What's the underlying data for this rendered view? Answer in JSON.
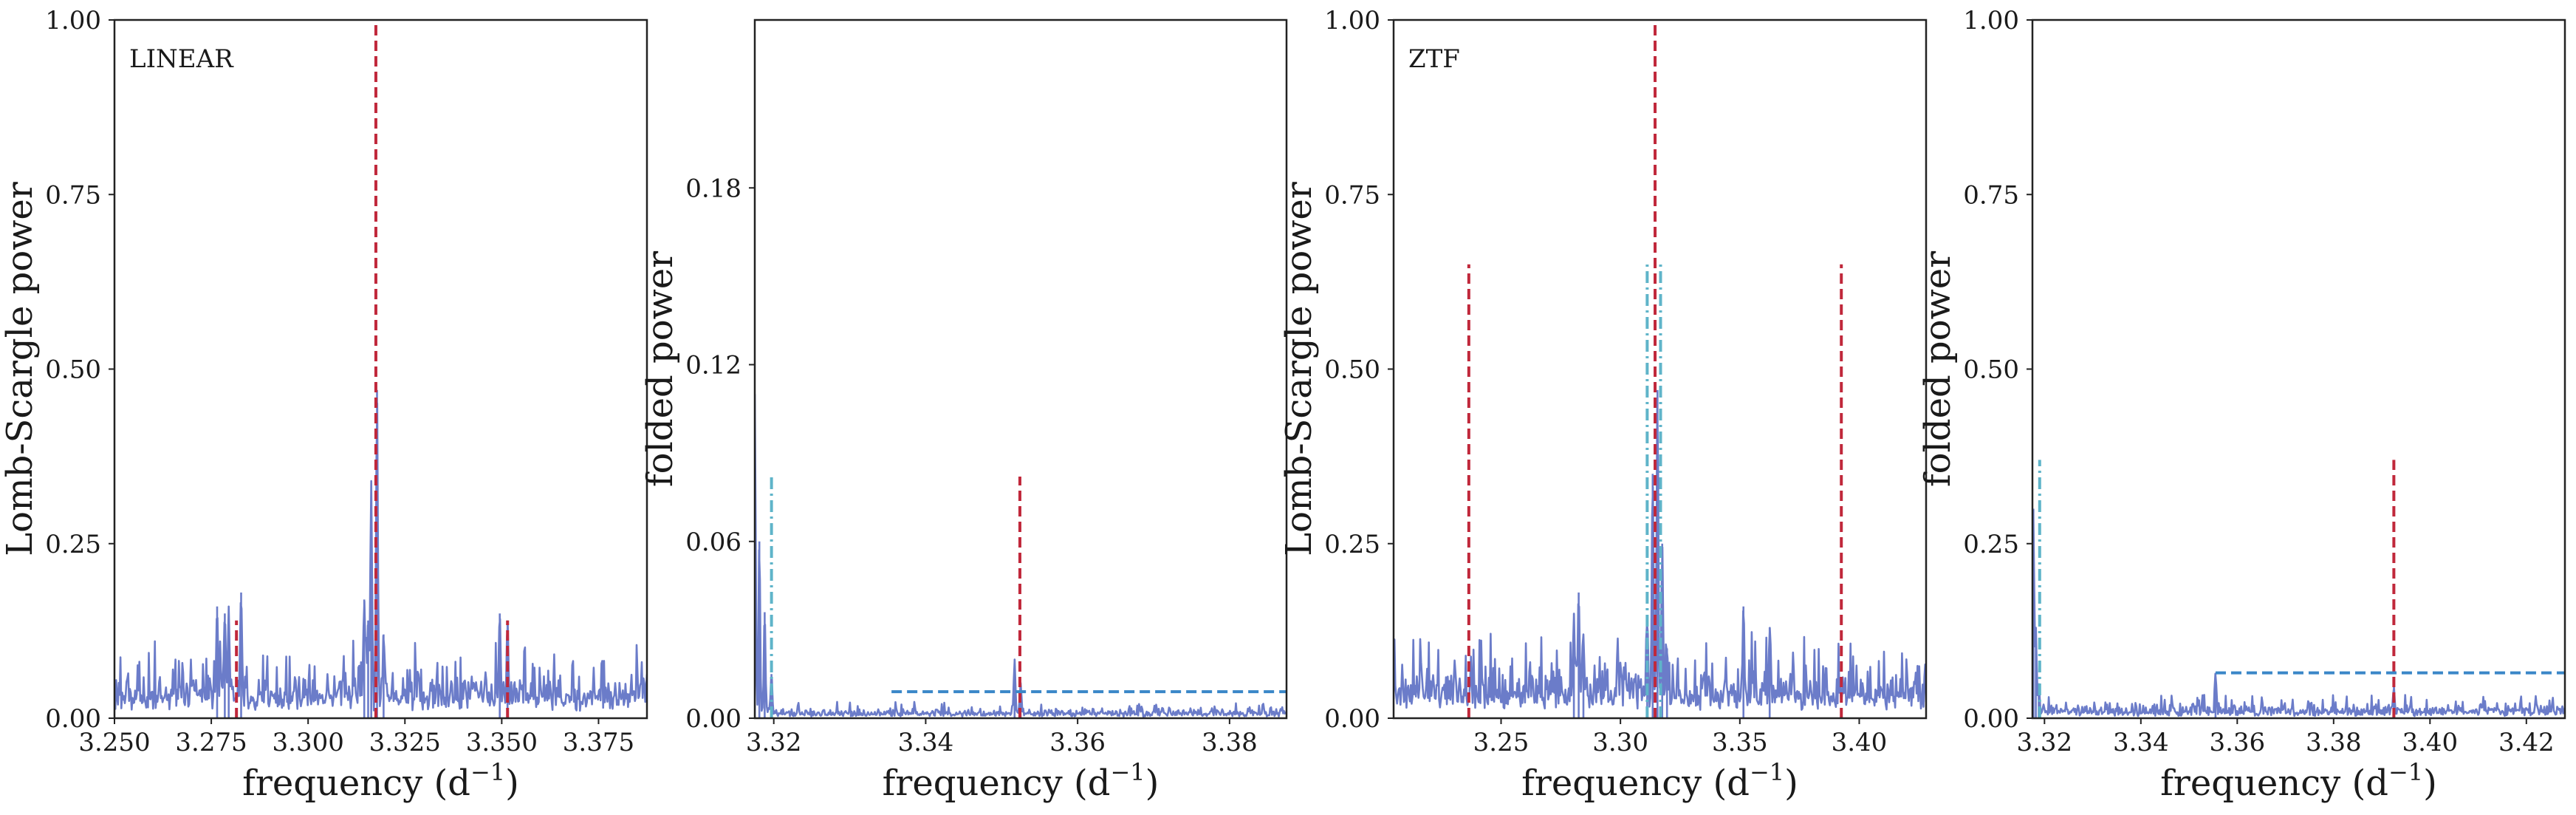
{
  "colors": {
    "power_line": "#6b7cc9",
    "red_dashed": "#c0283b",
    "teal_dashdot": "#5fb4c9",
    "blue_dashed": "#3a87c8"
  },
  "chart_data": [
    {
      "type": "line",
      "panel_label": "LINEAR",
      "xlabel": "frequency (d",
      "xlabel_sup": "−1",
      "xlabel_tail": ")",
      "ylabel": "Lomb-Scargle power",
      "xlim": [
        3.25,
        3.3875
      ],
      "ylim": [
        0,
        1.0
      ],
      "x_ticks": [
        3.25,
        3.275,
        3.3,
        3.325,
        3.35,
        3.375
      ],
      "x_tick_labels": [
        "3.250",
        "3.275",
        "3.300",
        "3.325",
        "3.350",
        "3.375"
      ],
      "y_ticks": [
        0,
        0.25,
        0.5,
        0.75,
        1.0
      ],
      "y_tick_labels": [
        "0.00",
        "0.25",
        "0.50",
        "0.75",
        "1.00"
      ],
      "series": [
        {
          "noise_level": 0.04,
          "peaks": [
            {
              "x": 3.2765,
              "y": 0.16
            },
            {
              "x": 3.2785,
              "y": 0.15
            },
            {
              "x": 3.2795,
              "y": 0.16
            },
            {
              "x": 3.2827,
              "y": 0.18
            },
            {
              "x": 3.3145,
              "y": 0.17
            },
            {
              "x": 3.3155,
              "y": 0.14
            },
            {
              "x": 3.3163,
              "y": 0.34
            },
            {
              "x": 3.3178,
              "y": 0.47
            },
            {
              "x": 3.3195,
              "y": 0.12
            },
            {
              "x": 3.3495,
              "y": 0.15
            },
            {
              "x": 3.3515,
              "y": 0.14
            }
          ]
        }
      ],
      "vlines": [
        {
          "x": 3.3175,
          "y0": 0,
          "y1": 1.0,
          "style": "dashed",
          "color": "#c0283b"
        },
        {
          "x": 3.2815,
          "y0": 0,
          "y1": 0.14,
          "style": "dashed",
          "color": "#c0283b"
        },
        {
          "x": 3.3515,
          "y0": 0,
          "y1": 0.14,
          "style": "dashed",
          "color": "#c0283b"
        }
      ],
      "hlines": []
    },
    {
      "type": "line",
      "panel_label": "",
      "xlabel": "frequency (d",
      "xlabel_sup": "−1",
      "xlabel_tail": ")",
      "ylabel": "folded power",
      "xlim": [
        3.3175,
        3.3875
      ],
      "ylim": [
        0,
        0.237
      ],
      "x_ticks": [
        3.32,
        3.34,
        3.36,
        3.38
      ],
      "x_tick_labels": [
        "3.32",
        "3.34",
        "3.36",
        "3.38"
      ],
      "y_ticks": [
        0,
        0.06,
        0.12,
        0.18
      ],
      "y_tick_labels": [
        "0.00",
        "0.06",
        "0.12",
        "0.18"
      ],
      "series": [
        {
          "noise_level": 0.002,
          "peaks": [
            {
              "x": 3.3175,
              "y": 0.11
            },
            {
              "x": 3.3181,
              "y": 0.06
            },
            {
              "x": 3.3188,
              "y": 0.036
            },
            {
              "x": 3.3197,
              "y": 0.015
            },
            {
              "x": 3.3517,
              "y": 0.02
            },
            {
              "x": 3.3525,
              "y": 0.012
            }
          ]
        }
      ],
      "vlines": [
        {
          "x": 3.3197,
          "y0": 0,
          "y1": 0.082,
          "style": "dashdot",
          "color": "#5fb4c9"
        },
        {
          "x": 3.3524,
          "y0": 0,
          "y1": 0.082,
          "style": "dashed",
          "color": "#c0283b"
        }
      ],
      "hlines": [
        {
          "y": 0.009,
          "x0": 3.3355,
          "x1": 3.3875,
          "style": "dashed",
          "color": "#3a87c8"
        }
      ]
    },
    {
      "type": "line",
      "panel_label": "ZTF",
      "xlabel": "frequency (d",
      "xlabel_sup": "−1",
      "xlabel_tail": ")",
      "ylabel": "Lomb-Scargle power",
      "xlim": [
        3.205,
        3.428
      ],
      "ylim": [
        0,
        1.0
      ],
      "x_ticks": [
        3.25,
        3.3,
        3.35,
        3.4
      ],
      "x_tick_labels": [
        "3.25",
        "3.30",
        "3.35",
        "3.40"
      ],
      "y_ticks": [
        0,
        0.25,
        0.5,
        0.75,
        1.0
      ],
      "y_tick_labels": [
        "0.00",
        "0.25",
        "0.50",
        "0.75",
        "1.00"
      ],
      "series": [
        {
          "noise_level": 0.045,
          "peaks": [
            {
              "x": 3.2805,
              "y": 0.15
            },
            {
              "x": 3.2825,
              "y": 0.18
            },
            {
              "x": 3.2845,
              "y": 0.12
            },
            {
              "x": 3.3112,
              "y": 0.14
            },
            {
              "x": 3.3135,
              "y": 0.35
            },
            {
              "x": 3.3155,
              "y": 0.47
            },
            {
              "x": 3.3175,
              "y": 0.25
            },
            {
              "x": 3.3195,
              "y": 0.1
            },
            {
              "x": 3.3515,
              "y": 0.16
            },
            {
              "x": 3.3625,
              "y": 0.13
            }
          ]
        }
      ],
      "vlines": [
        {
          "x": 3.3145,
          "y0": 0,
          "y1": 1.0,
          "style": "dashed",
          "color": "#c0283b"
        },
        {
          "x": 3.2365,
          "y0": 0,
          "y1": 0.65,
          "style": "dashed",
          "color": "#c0283b"
        },
        {
          "x": 3.3925,
          "y0": 0,
          "y1": 0.65,
          "style": "dashed",
          "color": "#c0283b"
        },
        {
          "x": 3.3112,
          "y0": 0,
          "y1": 0.65,
          "style": "dashdot",
          "color": "#5fb4c9"
        },
        {
          "x": 3.3168,
          "y0": 0,
          "y1": 0.65,
          "style": "dashdot",
          "color": "#5fb4c9"
        }
      ],
      "hlines": []
    },
    {
      "type": "line",
      "panel_label": "",
      "xlabel": "frequency (d",
      "xlabel_sup": "−1",
      "xlabel_tail": ")",
      "ylabel": "folded power",
      "xlim": [
        3.3175,
        3.428
      ],
      "ylim": [
        0,
        1.0
      ],
      "x_ticks": [
        3.32,
        3.34,
        3.36,
        3.38,
        3.4,
        3.42
      ],
      "x_tick_labels": [
        "3.32",
        "3.34",
        "3.36",
        "3.38",
        "3.40",
        "3.42"
      ],
      "y_ticks": [
        0,
        0.25,
        0.5,
        0.75,
        1.0
      ],
      "y_tick_labels": [
        "0.00",
        "0.25",
        "0.50",
        "0.75",
        "1.00"
      ],
      "series": [
        {
          "noise_level": 0.012,
          "peaks": [
            {
              "x": 3.3177,
              "y": 0.3
            },
            {
              "x": 3.3182,
              "y": 0.13
            },
            {
              "x": 3.3188,
              "y": 0.05
            },
            {
              "x": 3.3555,
              "y": 0.065
            },
            {
              "x": 3.3925,
              "y": 0.045
            }
          ]
        }
      ],
      "vlines": [
        {
          "x": 3.319,
          "y0": 0,
          "y1": 0.37,
          "style": "dashdot",
          "color": "#5fb4c9"
        },
        {
          "x": 3.3925,
          "y0": 0,
          "y1": 0.37,
          "style": "dashed",
          "color": "#c0283b"
        }
      ],
      "hlines": [
        {
          "y": 0.065,
          "x0": 3.3555,
          "x1": 3.428,
          "style": "dashed",
          "color": "#3a87c8"
        }
      ]
    }
  ]
}
